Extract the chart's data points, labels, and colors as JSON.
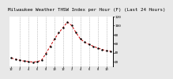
{
  "title": "Milwaukee Weather THSW Index per Hour (F) (Last 24 Hours)",
  "x_hours": [
    0,
    1,
    2,
    3,
    4,
    5,
    6,
    7,
    8,
    9,
    10,
    11,
    12,
    13,
    14,
    15,
    16,
    17,
    18,
    19,
    20,
    21,
    22,
    23
  ],
  "y_values": [
    28,
    25,
    23,
    21,
    20,
    19,
    20,
    23,
    38,
    54,
    70,
    84,
    96,
    108,
    100,
    84,
    70,
    63,
    58,
    54,
    50,
    47,
    44,
    43
  ],
  "line_color": "#cc0000",
  "marker_color": "#000000",
  "bg_color": "#e8e8e8",
  "plot_bg": "#ffffff",
  "grid_color": "#999999",
  "title_color": "#000000",
  "title_fontsize": 4.2,
  "ylim_min": 10,
  "ylim_max": 120,
  "ytick_values": [
    20,
    40,
    60,
    80,
    100,
    120
  ],
  "ytick_labels": [
    "20",
    "40",
    "60",
    "80",
    "100",
    "120"
  ],
  "x_tick_hours": [
    0,
    2,
    4,
    6,
    8,
    10,
    12,
    14,
    16,
    18,
    20,
    22
  ],
  "x_tick_labels": [
    "12",
    "2",
    "4",
    "6",
    "8",
    "10",
    "12",
    "2",
    "4",
    "6",
    "8",
    "10"
  ],
  "vgrid_positions": [
    2,
    4,
    6,
    8,
    10,
    12,
    14,
    16,
    18,
    20,
    22
  ]
}
